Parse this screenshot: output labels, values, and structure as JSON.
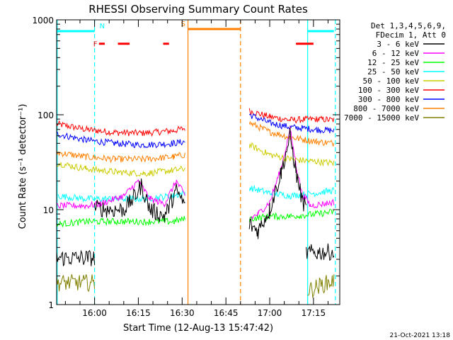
{
  "chart_data": {
    "type": "line",
    "title": "RHESSI Observing Summary Count Rates",
    "xlabel": "Start Time (12-Aug-13 15:47:42)",
    "ylabel": "Count Rate (s⁻¹ detector⁻¹)",
    "yscale": "log",
    "ylim": [
      1,
      1000
    ],
    "xlim_minutes": [
      15.0,
      112.0
    ],
    "x_ticks": [
      {
        "label": "16:00",
        "minute": 28.0
      },
      {
        "label": "16:15",
        "minute": 43.0
      },
      {
        "label": "16:30",
        "minute": 58.0
      },
      {
        "label": "16:45",
        "minute": 73.0
      },
      {
        "label": "17:00",
        "minute": 88.0
      },
      {
        "label": "17:15",
        "minute": 103.0
      }
    ],
    "y_ticks": [
      {
        "label": "1",
        "value": 1
      },
      {
        "label": "10",
        "value": 10
      },
      {
        "label": "100",
        "value": 100
      },
      {
        "label": "1000",
        "value": 1000
      }
    ],
    "legend": {
      "position": "top-right",
      "header": [
        "Det 1,3,4,5,6,9,",
        "FDecim 1, Att 0"
      ],
      "entries": [
        {
          "label": "3 - 6 keV",
          "color": "#000000"
        },
        {
          "label": "6 - 12 keV",
          "color": "#ff00ff"
        },
        {
          "label": "12 - 25 keV",
          "color": "#00ff00"
        },
        {
          "label": "25 - 50 keV",
          "color": "#00ffff"
        },
        {
          "label": "50 - 100 keV",
          "color": "#cccc00"
        },
        {
          "label": "100 - 300 keV",
          "color": "#ff0000"
        },
        {
          "label": "300 - 800 keV",
          "color": "#0000ff"
        },
        {
          "label": "800 - 7000 keV",
          "color": "#ff8000"
        },
        {
          "label": "7000 - 15000 keV",
          "color": "#808000"
        }
      ]
    },
    "series": [
      {
        "name": "100 - 300 keV",
        "color": "#ff0000",
        "segments": [
          [
            [
              15,
              80
            ],
            [
              25,
              70
            ],
            [
              35,
              65
            ],
            [
              45,
              64
            ],
            [
              55,
              68
            ],
            [
              59,
              72
            ]
          ],
          [
            [
              81,
              110
            ],
            [
              88,
              95
            ],
            [
              95,
              88
            ],
            [
              104,
              90
            ],
            [
              110,
              88
            ]
          ]
        ]
      },
      {
        "name": "300 - 800 keV",
        "color": "#0000ff",
        "segments": [
          [
            [
              15,
              63
            ],
            [
              25,
              54
            ],
            [
              35,
              50
            ],
            [
              45,
              48
            ],
            [
              55,
              50
            ],
            [
              59,
              52
            ]
          ],
          [
            [
              81,
              100
            ],
            [
              88,
              82
            ],
            [
              95,
              74
            ],
            [
              104,
              70
            ],
            [
              110,
              68
            ]
          ]
        ]
      },
      {
        "name": "800 - 7000 keV",
        "color": "#ff8000",
        "segments": [
          [
            [
              15,
              40
            ],
            [
              25,
              36
            ],
            [
              35,
              34
            ],
            [
              45,
              34
            ],
            [
              55,
              36
            ],
            [
              59,
              38
            ]
          ],
          [
            [
              81,
              82
            ],
            [
              88,
              66
            ],
            [
              95,
              58
            ],
            [
              104,
              52
            ],
            [
              110,
              50
            ]
          ]
        ]
      },
      {
        "name": "50 - 100 keV",
        "color": "#cccc00",
        "segments": [
          [
            [
              15,
              31
            ],
            [
              25,
              27
            ],
            [
              35,
              25
            ],
            [
              45,
              24
            ],
            [
              55,
              26
            ],
            [
              59,
              27
            ]
          ],
          [
            [
              81,
              48
            ],
            [
              88,
              38
            ],
            [
              95,
              34
            ],
            [
              104,
              32
            ],
            [
              110,
              31
            ]
          ]
        ]
      },
      {
        "name": "25 - 50 keV",
        "color": "#00ffff",
        "segments": [
          [
            [
              15,
              14
            ],
            [
              25,
              13
            ],
            [
              35,
              13
            ],
            [
              45,
              13
            ],
            [
              55,
              14
            ],
            [
              59,
              15
            ]
          ],
          [
            [
              81,
              17
            ],
            [
              88,
              15
            ],
            [
              95,
              14
            ],
            [
              104,
              15
            ],
            [
              110,
              16
            ]
          ]
        ]
      },
      {
        "name": "6 - 12 keV",
        "color": "#ff00ff",
        "segments": [
          [
            [
              15,
              11
            ],
            [
              25,
              11
            ],
            [
              30,
              11.5
            ],
            [
              38,
              14
            ],
            [
              43,
              20
            ],
            [
              47,
              13
            ],
            [
              52,
              11.5
            ],
            [
              56,
              20
            ],
            [
              59,
              14
            ]
          ],
          [
            [
              81,
              8
            ],
            [
              84,
              9
            ],
            [
              88,
              12
            ],
            [
              92,
              28
            ],
            [
              95,
              70
            ],
            [
              97,
              30
            ],
            [
              99,
              15
            ],
            [
              102,
              11
            ],
            [
              110,
              12
            ]
          ]
        ]
      },
      {
        "name": "12 - 25 keV",
        "color": "#00ff00",
        "segments": [
          [
            [
              15,
              7
            ],
            [
              25,
              7.5
            ],
            [
              35,
              7.5
            ],
            [
              45,
              7.5
            ],
            [
              55,
              7.5
            ],
            [
              59,
              8
            ]
          ],
          [
            [
              81,
              8
            ],
            [
              88,
              8.5
            ],
            [
              95,
              8.5
            ],
            [
              104,
              9
            ],
            [
              110,
              9.5
            ]
          ]
        ]
      },
      {
        "name": "3 - 6 keV",
        "color": "#000000",
        "segments": [
          [
            [
              15,
              3.1
            ],
            [
              28,
              3.1
            ]
          ],
          [
            [
              28,
              10.5
            ],
            [
              33,
              10
            ],
            [
              38,
              10
            ],
            [
              42,
              14
            ],
            [
              44,
              18
            ],
            [
              47,
              10
            ],
            [
              52,
              8.5
            ],
            [
              56,
              16
            ],
            [
              59,
              11
            ]
          ],
          [
            [
              81,
              7
            ],
            [
              84,
              6
            ],
            [
              88,
              10
            ],
            [
              92,
              25
            ],
            [
              95,
              60
            ],
            [
              97,
              25
            ],
            [
              99,
              13
            ],
            [
              100.5,
              10
            ]
          ],
          [
            [
              100.5,
              3.5
            ],
            [
              110,
              3.6
            ]
          ]
        ]
      },
      {
        "name": "7000 - 15000 keV",
        "color": "#808000",
        "segments": [
          [
            [
              15,
              1.7
            ],
            [
              28,
              1.7
            ]
          ],
          [
            [
              101,
              1.4
            ],
            [
              110,
              1.8
            ]
          ]
        ]
      }
    ],
    "annotations": {
      "flags": [
        {
          "label": "N",
          "color": "#00ffff",
          "bars": [
            [
              15,
              28
            ],
            [
              101,
              110
            ]
          ],
          "level": 760
        },
        {
          "label": "F",
          "color": "#ff0000",
          "bars": [
            [
              29.5,
              31.5
            ],
            [
              36,
              40
            ],
            [
              51.5,
              53.5
            ],
            [
              97,
              103
            ]
          ],
          "level": 560
        },
        {
          "label": "S",
          "color": "#ff8000",
          "bars": [
            [
              60,
              78
            ]
          ],
          "level": 800
        }
      ],
      "vlines": [
        {
          "minute": 28.0,
          "color": "#00ffff",
          "dashed": true
        },
        {
          "minute": 101.0,
          "color": "#00ffff",
          "dashed": false
        },
        {
          "minute": 110.5,
          "color": "#00ffff",
          "dashed": true
        },
        {
          "minute": 15.2,
          "color": "#00ffff",
          "dashed": false
        },
        {
          "minute": 60.0,
          "color": "#ff8000",
          "dashed": false
        },
        {
          "minute": 78.0,
          "color": "#ff8000",
          "dashed": true
        }
      ]
    },
    "footer": "21-Oct-2021 13:18"
  }
}
